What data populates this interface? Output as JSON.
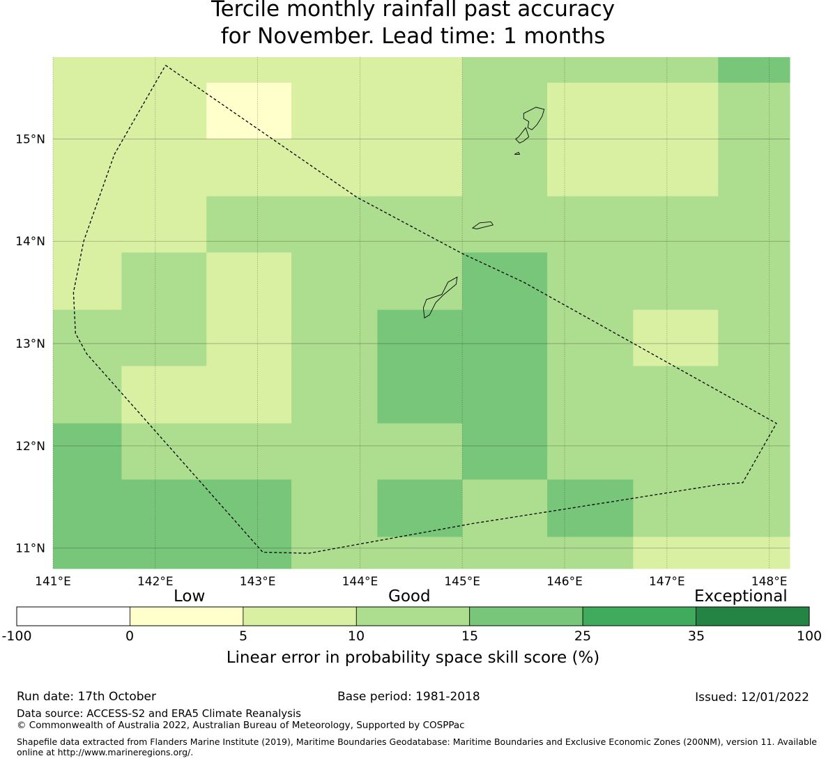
{
  "title": {
    "line1": "Tercile monthly rainfall past accuracy",
    "line2": "for November. Lead time: 1 months"
  },
  "map": {
    "lon_ticks": [
      "141°E",
      "142°E",
      "143°E",
      "144°E",
      "145°E",
      "146°E",
      "147°E",
      "148°E"
    ],
    "lat_ticks": [
      "15°N",
      "14°N",
      "13°N",
      "12°N",
      "11°N"
    ],
    "lon_range": [
      141.0,
      148.2
    ],
    "lat_range": [
      10.8,
      15.8
    ],
    "grid": {
      "lon_edges": [
        141.0,
        141.67,
        142.5,
        143.33,
        144.17,
        145.0,
        145.83,
        146.67,
        147.5,
        148.2
      ],
      "lat_edges": [
        15.8,
        15.55,
        15.0,
        14.44,
        13.89,
        13.33,
        12.78,
        12.22,
        11.67,
        11.11,
        10.8
      ],
      "class_index_rows": [
        [
          2,
          2,
          2,
          2,
          2,
          3,
          3,
          3,
          4
        ],
        [
          2,
          2,
          1,
          2,
          2,
          3,
          2,
          2,
          3
        ],
        [
          2,
          2,
          2,
          2,
          2,
          3,
          2,
          2,
          3
        ],
        [
          2,
          2,
          3,
          3,
          3,
          3,
          3,
          3,
          3
        ],
        [
          2,
          3,
          2,
          3,
          3,
          4,
          3,
          3,
          3
        ],
        [
          3,
          3,
          2,
          3,
          4,
          4,
          3,
          2,
          3
        ],
        [
          3,
          2,
          2,
          3,
          4,
          4,
          3,
          3,
          3
        ],
        [
          4,
          3,
          3,
          3,
          3,
          4,
          3,
          3,
          3
        ],
        [
          4,
          4,
          4,
          3,
          4,
          3,
          4,
          3,
          3
        ],
        [
          4,
          4,
          4,
          3,
          3,
          3,
          3,
          2,
          2
        ]
      ]
    },
    "boundary_outline": [
      [
        142.1,
        15.72
      ],
      [
        143.97,
        14.43
      ],
      [
        145.0,
        13.88
      ],
      [
        145.6,
        13.6
      ],
      [
        148.07,
        12.22
      ],
      [
        147.74,
        11.64
      ],
      [
        147.5,
        11.62
      ],
      [
        146.5,
        11.46
      ],
      [
        145.1,
        11.24
      ],
      [
        143.5,
        10.95
      ],
      [
        143.05,
        10.96
      ],
      [
        141.33,
        12.9
      ],
      [
        141.22,
        13.1
      ],
      [
        141.2,
        13.5
      ],
      [
        141.3,
        14.0
      ],
      [
        141.6,
        14.85
      ],
      [
        142.1,
        15.72
      ]
    ],
    "islands": [
      [
        [
          145.6,
          15.25
        ],
        [
          145.72,
          15.31
        ],
        [
          145.8,
          15.29
        ],
        [
          145.78,
          15.22
        ],
        [
          145.73,
          15.14
        ],
        [
          145.68,
          15.09
        ],
        [
          145.64,
          15.11
        ],
        [
          145.65,
          15.17
        ],
        [
          145.6,
          15.2
        ],
        [
          145.6,
          15.25
        ]
      ],
      [
        [
          145.55,
          15.02
        ],
        [
          145.62,
          15.11
        ],
        [
          145.65,
          15.02
        ],
        [
          145.6,
          14.98
        ],
        [
          145.56,
          14.96
        ],
        [
          145.52,
          15.0
        ],
        [
          145.55,
          15.02
        ]
      ],
      [
        [
          145.1,
          14.13
        ],
        [
          145.17,
          14.18
        ],
        [
          145.28,
          14.19
        ],
        [
          145.3,
          14.16
        ],
        [
          145.22,
          14.14
        ],
        [
          145.14,
          14.12
        ],
        [
          145.1,
          14.13
        ]
      ],
      [
        [
          144.63,
          13.25
        ],
        [
          144.62,
          13.35
        ],
        [
          144.65,
          13.43
        ],
        [
          144.8,
          13.48
        ],
        [
          144.86,
          13.6
        ],
        [
          144.95,
          13.65
        ],
        [
          144.94,
          13.58
        ],
        [
          144.82,
          13.48
        ],
        [
          144.74,
          13.4
        ],
        [
          144.68,
          13.28
        ],
        [
          144.63,
          13.25
        ]
      ],
      [
        [
          145.51,
          14.85
        ],
        [
          145.55,
          14.87
        ],
        [
          145.56,
          14.85
        ],
        [
          145.51,
          14.85
        ]
      ]
    ]
  },
  "colorbar": {
    "categories": [
      "Low",
      "Good",
      "Exceptional"
    ],
    "ticks": [
      "-100",
      "0",
      "5",
      "10",
      "15",
      "25",
      "35",
      "100"
    ],
    "classes": [
      {
        "range": [
          -100,
          0
        ],
        "color": "#ffffff"
      },
      {
        "range": [
          0,
          5
        ],
        "color": "#ffffcc"
      },
      {
        "range": [
          5,
          10
        ],
        "color": "#d9f0a3"
      },
      {
        "range": [
          10,
          15
        ],
        "color": "#addd8e"
      },
      {
        "range": [
          15,
          25
        ],
        "color": "#78c679"
      },
      {
        "range": [
          25,
          35
        ],
        "color": "#41ab5d"
      },
      {
        "range": [
          35,
          100
        ],
        "color": "#238443"
      }
    ],
    "label": "Linear error in probability space skill score (%)"
  },
  "footer": {
    "run_date": "Run date: 17th October",
    "base_period": "Base period: 1981-2018",
    "issued": "Issued: 12/01/2022",
    "data_source": "Data source: ACCESS-S2 and ERA5 Climate Reanalysis",
    "copyright": "© Commonwealth of Australia 2022, Australian Bureau of Meteorology, Supported by COSPPac",
    "shapefile": "Shapefile data extracted from Flanders Marine Institute (2019), Maritime Boundaries Geodatabase: Maritime Boundaries and Exclusive Economic Zones (200NM), version 11. Available online at http://www.marineregions.org/."
  }
}
